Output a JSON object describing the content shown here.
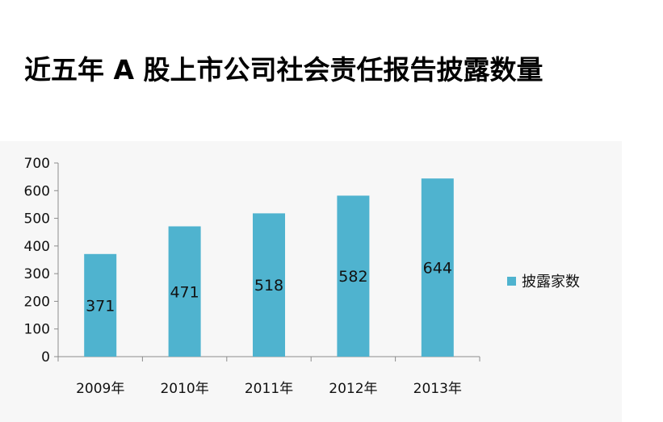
{
  "chart_data": {
    "type": "bar",
    "title": "近五年 A 股上市公司社会责任报告披露数量",
    "categories": [
      "2009年",
      "2010年",
      "2011年",
      "2012年",
      "2013年"
    ],
    "series": [
      {
        "name": "披露家数",
        "values": [
          371,
          471,
          518,
          582,
          644
        ]
      }
    ],
    "yticks": [
      "0",
      "100",
      "200",
      "300",
      "400",
      "500",
      "600",
      "700"
    ],
    "ylim": [
      0,
      700
    ],
    "xlabel": "",
    "ylabel": "",
    "grid": false,
    "legend": "right",
    "colors": {
      "bar": "#4fb3cf",
      "axis": "#8c8c8c"
    }
  }
}
